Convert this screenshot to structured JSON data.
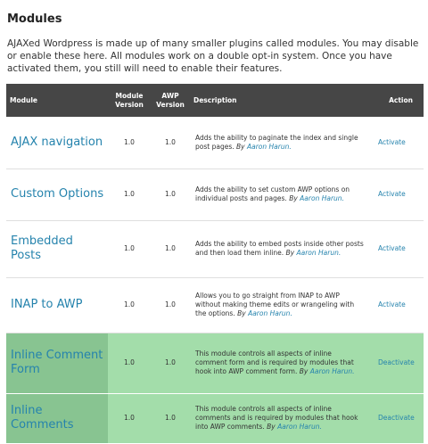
{
  "page": {
    "title": "Modules",
    "intro": "AJAXed Wordpress is made up of many smaller plugins called modules. You may disable or enable these here. All modules work on a double opt-in system. Once you have activated them, you still will need to enable their features."
  },
  "table": {
    "headers": {
      "module": "Module",
      "module_version": "Module Version",
      "awp_version": "AWP Version",
      "description": "Description",
      "action": "Action"
    },
    "by_label": "By",
    "rows": [
      {
        "name": "AJAX navigation",
        "module_version": "1.0",
        "awp_version": "1.0",
        "description": "Adds the ability to paginate the index and single post pages.",
        "author": "Aaron Harun.",
        "action": "Activate",
        "status": "inactive"
      },
      {
        "name": "Custom Options",
        "module_version": "1.0",
        "awp_version": "1.0",
        "description": "Adds the ability to set custom AWP options on individual posts and pages.",
        "author": "Aaron Harun.",
        "action": "Activate",
        "status": "inactive"
      },
      {
        "name": "Embedded Posts",
        "module_version": "1.0",
        "awp_version": "1.0",
        "description": "Adds the ability to embed posts inside other posts and then load them inline.",
        "author": "Aaron Harun.",
        "action": "Activate",
        "status": "inactive"
      },
      {
        "name": "INAP to AWP",
        "module_version": "1.0",
        "awp_version": "1.0",
        "description": "Allows you to go straight from INAP to AWP without making theme edits or wrangeling with the options.",
        "author": "Aaron Harun.",
        "action": "Activate",
        "status": "inactive"
      },
      {
        "name": "Inline Comment Form",
        "module_version": "1.0",
        "awp_version": "1.0",
        "description": "This module controls all aspects of inline comment form and is required by modules that hook into AWP comment form.",
        "author": "Aaron Harun.",
        "action": "Deactivate",
        "status": "active"
      },
      {
        "name": "Inline Comments",
        "module_version": "1.0",
        "awp_version": "1.0",
        "description": "This module controls all aspects of inline comments and is required by modules that hook into AWP comments.",
        "author": "Aaron Harun.",
        "action": "Deactivate",
        "status": "active"
      }
    ]
  },
  "colors": {
    "header_bg": "#464646",
    "link": "#2583ad",
    "active_row": "#a3ddaa",
    "active_name": "#88c491"
  }
}
